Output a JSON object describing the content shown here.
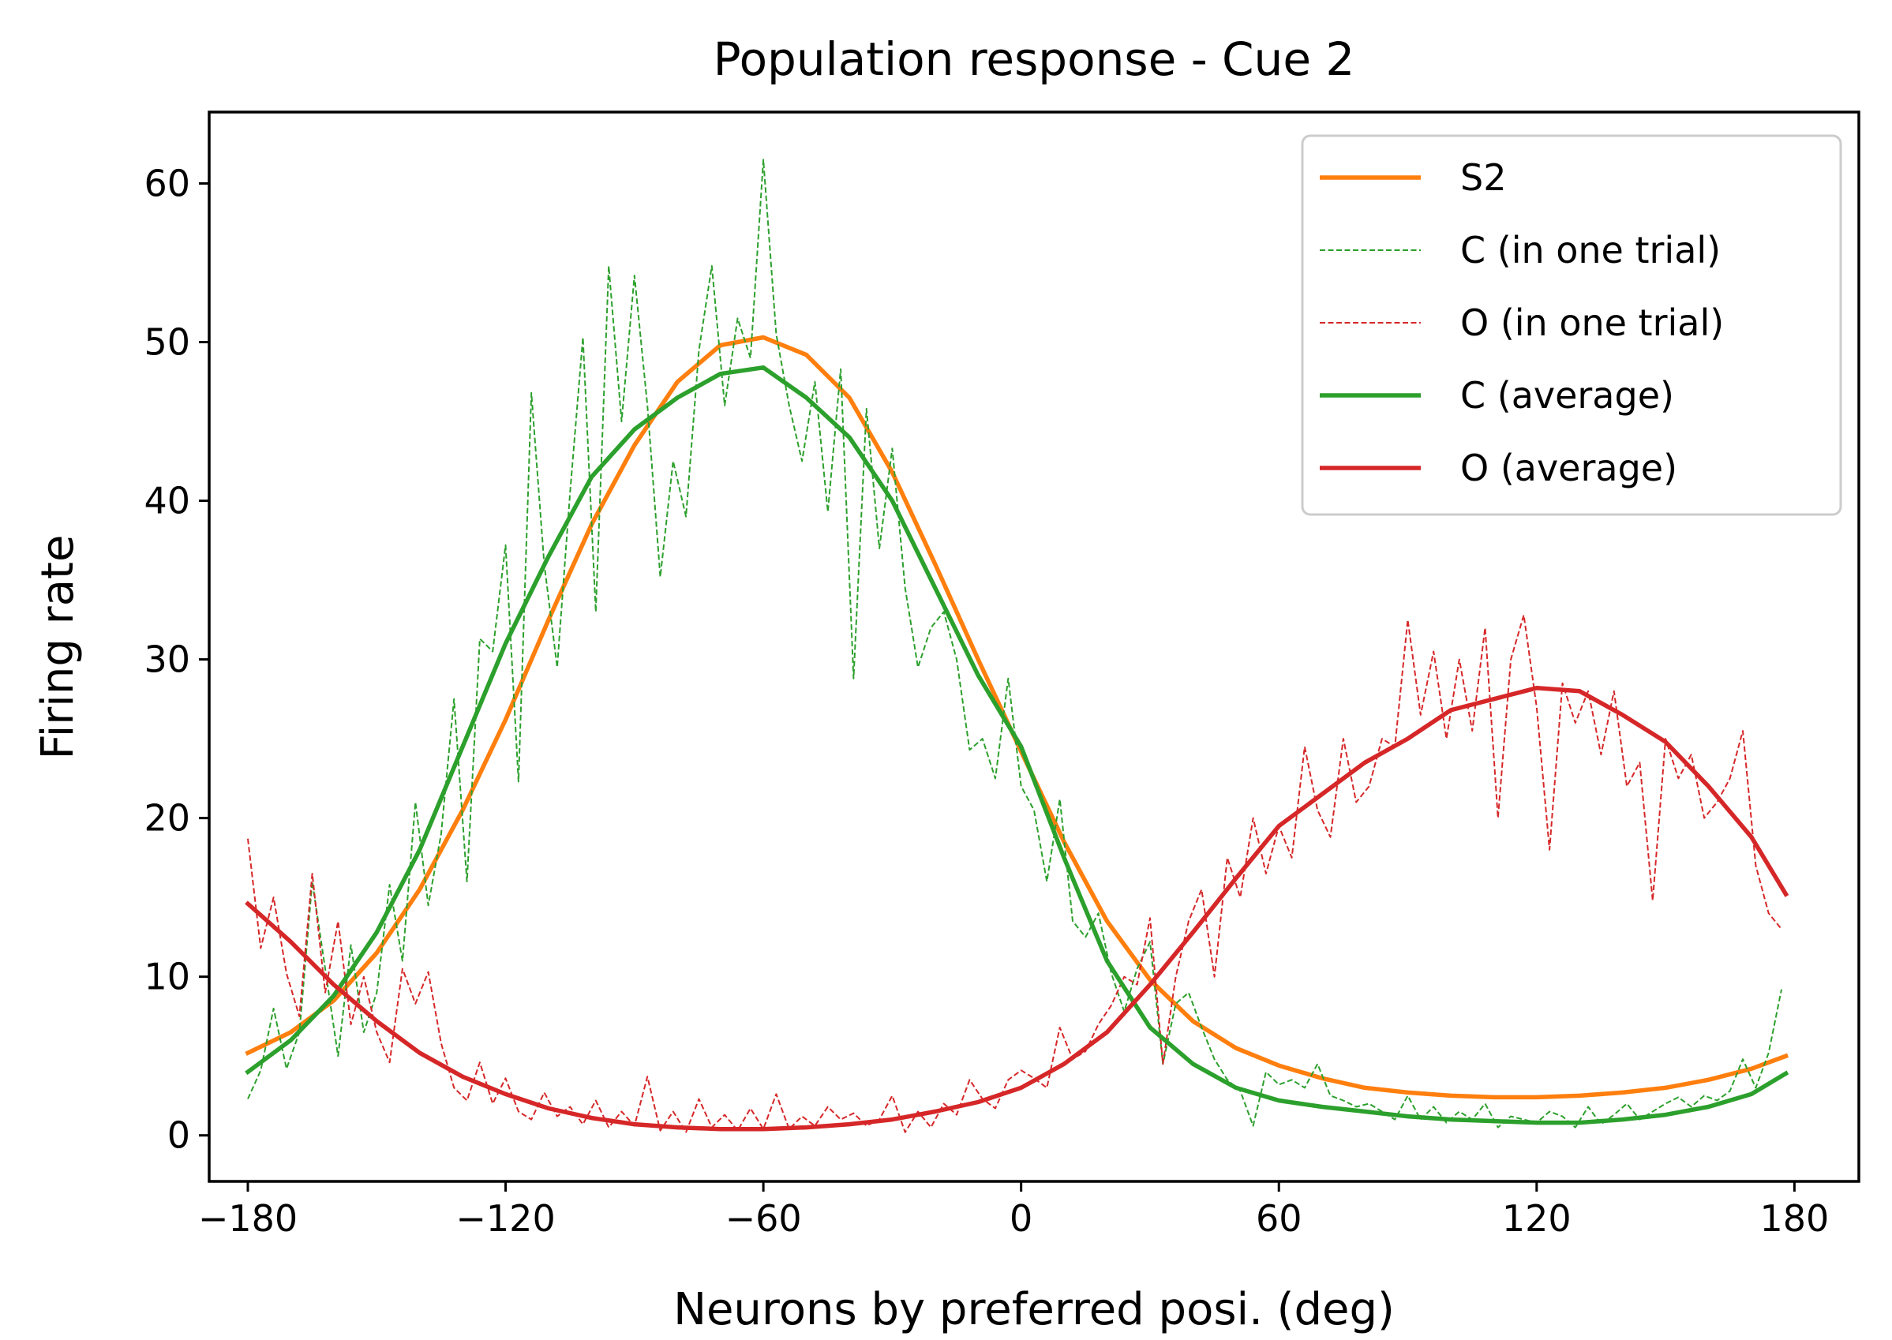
{
  "chart_data": {
    "type": "line",
    "title": "Population response - Cue 2",
    "xlabel": "Neurons by preferred posi. (deg)",
    "ylabel": "Firing rate",
    "xlim": [
      -189,
      195
    ],
    "ylim": [
      -2.9,
      64.5
    ],
    "xticks": [
      -180,
      -120,
      -60,
      0,
      60,
      120,
      180
    ],
    "xtick_labels": [
      "−180",
      "−120",
      "−60",
      "0",
      "60",
      "120",
      "180"
    ],
    "yticks": [
      0,
      10,
      20,
      30,
      40,
      50,
      60
    ],
    "ytick_labels": [
      "0",
      "10",
      "20",
      "30",
      "40",
      "50",
      "60"
    ],
    "grid": false,
    "legend_position": "top-right",
    "series": [
      {
        "name": "S2",
        "color": "#ff7f0e",
        "style": "solid",
        "x": [
          -180,
          -170,
          -160,
          -150,
          -140,
          -130,
          -120,
          -110,
          -100,
          -90,
          -80,
          -70,
          -60,
          -50,
          -40,
          -30,
          -20,
          -10,
          0,
          10,
          20,
          30,
          40,
          50,
          60,
          70,
          80,
          90,
          100,
          110,
          120,
          130,
          140,
          150,
          160,
          170,
          178
        ],
        "y": [
          5.2,
          6.5,
          8.5,
          11.5,
          15.5,
          20.5,
          26.2,
          32.5,
          38.5,
          43.5,
          47.5,
          49.8,
          50.3,
          49.2,
          46.5,
          41.8,
          36.0,
          30.0,
          24.2,
          18.5,
          13.5,
          9.8,
          7.2,
          5.5,
          4.4,
          3.6,
          3.0,
          2.7,
          2.5,
          2.4,
          2.4,
          2.5,
          2.7,
          3.0,
          3.5,
          4.2,
          5.0
        ]
      },
      {
        "name": "C (in one trial)",
        "color": "#2ca02c",
        "style": "dashed",
        "x": [
          -180,
          -177,
          -174,
          -171,
          -168,
          -165,
          -162,
          -159,
          -156,
          -153,
          -150,
          -147,
          -144,
          -141,
          -138,
          -135,
          -132,
          -129,
          -126,
          -123,
          -120,
          -117,
          -114,
          -111,
          -108,
          -105,
          -102,
          -99,
          -96,
          -93,
          -90,
          -87,
          -84,
          -81,
          -78,
          -75,
          -72,
          -69,
          -66,
          -63,
          -60,
          -57,
          -54,
          -51,
          -48,
          -45,
          -42,
          -39,
          -36,
          -33,
          -30,
          -27,
          -24,
          -21,
          -18,
          -15,
          -12,
          -9,
          -6,
          -3,
          0,
          3,
          6,
          9,
          12,
          15,
          18,
          21,
          24,
          27,
          30,
          33,
          36,
          39,
          42,
          45,
          48,
          51,
          54,
          57,
          60,
          63,
          66,
          69,
          72,
          75,
          78,
          81,
          84,
          87,
          90,
          93,
          96,
          99,
          102,
          105,
          108,
          111,
          114,
          117,
          120,
          123,
          126,
          129,
          132,
          135,
          138,
          141,
          144,
          147,
          150,
          153,
          156,
          159,
          162,
          165,
          168,
          171,
          174,
          177
        ],
        "y": [
          2.3,
          4.1,
          8.0,
          4.2,
          6.5,
          16.0,
          10.5,
          5.0,
          12.0,
          6.5,
          9.0,
          15.8,
          11.0,
          21.0,
          14.5,
          19.0,
          27.5,
          16.0,
          31.3,
          30.5,
          37.2,
          22.3,
          46.8,
          36.0,
          29.5,
          40.5,
          50.3,
          33.0,
          54.8,
          45.0,
          54.2,
          46.0,
          35.2,
          42.5,
          39.0,
          49.5,
          54.8,
          46.0,
          51.5,
          49.0,
          61.5,
          50.5,
          46.0,
          42.5,
          47.5,
          39.3,
          48.3,
          28.8,
          45.8,
          37.0,
          43.3,
          34.5,
          29.5,
          32.0,
          33.0,
          30.0,
          24.3,
          25.0,
          22.5,
          28.8,
          22.0,
          20.5,
          16.0,
          21.2,
          13.5,
          12.5,
          14.0,
          10.2,
          7.8,
          10.5,
          12.2,
          4.5,
          8.3,
          9.0,
          6.8,
          4.8,
          3.5,
          2.8,
          0.6,
          4.0,
          3.2,
          3.5,
          3.0,
          4.5,
          2.5,
          2.2,
          1.8,
          2.0,
          1.5,
          1.0,
          2.5,
          1.0,
          1.8,
          0.8,
          1.5,
          1.0,
          2.0,
          0.5,
          1.2,
          1.0,
          0.8,
          1.5,
          1.2,
          0.5,
          1.8,
          0.7,
          1.3,
          2.0,
          1.0,
          1.5,
          2.0,
          2.4,
          1.8,
          2.5,
          2.2,
          2.8,
          4.8,
          3.0,
          5.2,
          9.2
        ]
      },
      {
        "name": "O (in one trial)",
        "color": "#d62728",
        "style": "dashed",
        "x": [
          -180,
          -177,
          -174,
          -171,
          -168,
          -165,
          -162,
          -159,
          -156,
          -153,
          -150,
          -147,
          -144,
          -141,
          -138,
          -135,
          -132,
          -129,
          -126,
          -123,
          -120,
          -117,
          -114,
          -111,
          -108,
          -105,
          -102,
          -99,
          -96,
          -93,
          -90,
          -87,
          -84,
          -81,
          -78,
          -75,
          -72,
          -69,
          -66,
          -63,
          -60,
          -57,
          -54,
          -51,
          -48,
          -45,
          -42,
          -39,
          -36,
          -33,
          -30,
          -27,
          -24,
          -21,
          -18,
          -15,
          -12,
          -9,
          -6,
          -3,
          0,
          3,
          6,
          9,
          12,
          15,
          18,
          21,
          24,
          27,
          30,
          33,
          36,
          39,
          42,
          45,
          48,
          51,
          54,
          57,
          60,
          63,
          66,
          69,
          72,
          75,
          78,
          81,
          84,
          87,
          90,
          93,
          96,
          99,
          102,
          105,
          108,
          111,
          114,
          117,
          120,
          123,
          126,
          129,
          132,
          135,
          138,
          141,
          144,
          147,
          150,
          153,
          156,
          159,
          162,
          165,
          168,
          171,
          174,
          177
        ],
        "y": [
          18.7,
          11.8,
          15.0,
          10.2,
          7.5,
          16.5,
          9.0,
          13.5,
          7.0,
          10.0,
          6.5,
          4.6,
          10.5,
          8.3,
          10.3,
          5.8,
          3.0,
          2.2,
          4.6,
          2.0,
          3.6,
          1.5,
          1.0,
          2.7,
          1.2,
          1.8,
          0.7,
          2.2,
          0.5,
          1.5,
          0.6,
          3.7,
          0.3,
          1.5,
          0.2,
          2.3,
          0.5,
          1.3,
          0.3,
          1.7,
          0.4,
          2.6,
          0.4,
          1.2,
          0.6,
          1.8,
          1.0,
          1.4,
          0.6,
          1.0,
          2.5,
          0.2,
          1.5,
          0.5,
          2.0,
          1.3,
          3.5,
          2.3,
          1.7,
          3.5,
          4.1,
          3.6,
          3.0,
          6.8,
          4.8,
          5.3,
          7.0,
          8.2,
          10.0,
          9.5,
          13.7,
          4.5,
          10.0,
          13.5,
          15.5,
          10.0,
          17.5,
          15.0,
          20.0,
          16.5,
          19.5,
          17.5,
          24.5,
          20.5,
          18.8,
          25.0,
          21.0,
          22.0,
          25.0,
          24.5,
          32.5,
          26.5,
          30.5,
          25.0,
          30.0,
          25.5,
          32.0,
          20.0,
          30.0,
          32.8,
          27.0,
          18.0,
          28.5,
          26.0,
          28.0,
          24.0,
          28.0,
          22.0,
          23.5,
          14.8,
          25.0,
          22.5,
          24.0,
          20.0,
          21.0,
          22.5,
          25.5,
          17.0,
          14.0,
          13.0
        ]
      },
      {
        "name": "C (average)",
        "color": "#2ca02c",
        "style": "solid",
        "x": [
          -180,
          -170,
          -160,
          -150,
          -140,
          -130,
          -120,
          -110,
          -100,
          -90,
          -80,
          -70,
          -60,
          -50,
          -40,
          -30,
          -20,
          -10,
          0,
          10,
          20,
          30,
          40,
          50,
          60,
          70,
          80,
          90,
          100,
          110,
          120,
          130,
          140,
          150,
          160,
          170,
          178
        ],
        "y": [
          4.0,
          6.0,
          8.8,
          12.8,
          18.0,
          24.5,
          31.0,
          36.5,
          41.5,
          44.5,
          46.5,
          48.0,
          48.4,
          46.5,
          44.0,
          40.0,
          34.5,
          29.0,
          24.5,
          17.5,
          11.0,
          6.8,
          4.5,
          3.0,
          2.2,
          1.8,
          1.5,
          1.2,
          1.0,
          0.9,
          0.8,
          0.8,
          1.0,
          1.3,
          1.8,
          2.6,
          3.9
        ]
      },
      {
        "name": "O (average)",
        "color": "#d62728",
        "style": "solid",
        "x": [
          -180,
          -170,
          -160,
          -150,
          -140,
          -130,
          -120,
          -110,
          -100,
          -90,
          -80,
          -70,
          -60,
          -50,
          -40,
          -30,
          -20,
          -10,
          0,
          10,
          20,
          30,
          40,
          50,
          60,
          70,
          80,
          90,
          100,
          110,
          120,
          130,
          140,
          150,
          160,
          170,
          178
        ],
        "y": [
          14.6,
          12.2,
          9.5,
          7.2,
          5.2,
          3.7,
          2.6,
          1.7,
          1.1,
          0.7,
          0.5,
          0.4,
          0.4,
          0.5,
          0.7,
          1.0,
          1.5,
          2.1,
          3.0,
          4.5,
          6.5,
          9.5,
          12.8,
          16.2,
          19.5,
          21.5,
          23.5,
          25.0,
          26.8,
          27.5,
          28.2,
          28.0,
          26.5,
          24.8,
          22.0,
          18.8,
          15.2
        ]
      }
    ]
  }
}
